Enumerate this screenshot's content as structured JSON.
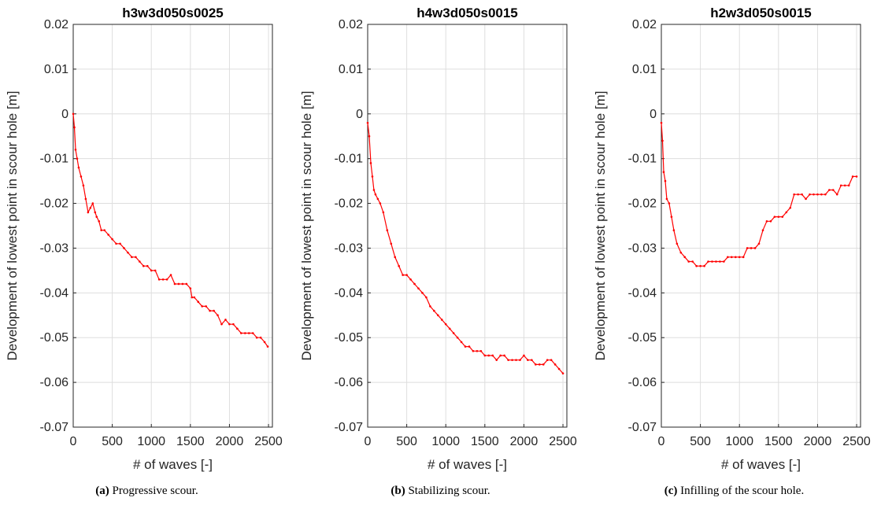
{
  "chart_data": [
    {
      "type": "line",
      "title": "h3w3d050s0025",
      "xlabel": "# of waves [-]",
      "ylabel": "Development of lowest point in scour hole [m]",
      "xlim": [
        0,
        2550
      ],
      "ylim": [
        -0.07,
        0.02
      ],
      "xticks": [
        0,
        500,
        1000,
        1500,
        2000,
        2500
      ],
      "xtick_labels": [
        "0",
        "500",
        "1000",
        "1500",
        "2000",
        "2500"
      ],
      "yticks": [
        0.02,
        0.01,
        0,
        -0.01,
        -0.02,
        -0.03,
        -0.04,
        -0.05,
        -0.06,
        -0.07
      ],
      "ytick_labels": [
        "0.02",
        "0.01",
        "0",
        "-0.01",
        "-0.02",
        "-0.03",
        "-0.04",
        "-0.05",
        "-0.06",
        "-0.07"
      ],
      "grid": true,
      "series": [
        {
          "color": "#ff0000",
          "x": [
            0,
            15,
            30,
            50,
            70,
            100,
            130,
            160,
            190,
            220,
            250,
            280,
            300,
            330,
            360,
            400,
            450,
            500,
            550,
            600,
            650,
            700,
            750,
            800,
            850,
            900,
            950,
            1000,
            1050,
            1100,
            1150,
            1200,
            1250,
            1300,
            1350,
            1400,
            1450,
            1500,
            1520,
            1550,
            1600,
            1650,
            1700,
            1750,
            1800,
            1850,
            1900,
            1950,
            2000,
            2050,
            2100,
            2150,
            2200,
            2250,
            2300,
            2350,
            2400,
            2450,
            2490
          ],
          "y": [
            0,
            -0.003,
            -0.008,
            -0.01,
            -0.012,
            -0.014,
            -0.016,
            -0.019,
            -0.022,
            -0.021,
            -0.02,
            -0.022,
            -0.023,
            -0.024,
            -0.026,
            -0.026,
            -0.027,
            -0.028,
            -0.029,
            -0.029,
            -0.03,
            -0.031,
            -0.032,
            -0.032,
            -0.033,
            -0.034,
            -0.034,
            -0.035,
            -0.035,
            -0.037,
            -0.037,
            -0.037,
            -0.036,
            -0.038,
            -0.038,
            -0.038,
            -0.038,
            -0.039,
            -0.041,
            -0.041,
            -0.042,
            -0.043,
            -0.043,
            -0.044,
            -0.044,
            -0.045,
            -0.047,
            -0.046,
            -0.047,
            -0.047,
            -0.048,
            -0.049,
            -0.049,
            -0.049,
            -0.049,
            -0.05,
            -0.05,
            -0.051,
            -0.052
          ]
        }
      ]
    },
    {
      "type": "line",
      "title": "h4w3d050s0015",
      "xlabel": "# of waves [-]",
      "ylabel": "Development of lowest point in scour hole [m]",
      "xlim": [
        0,
        2550
      ],
      "ylim": [
        -0.07,
        0.02
      ],
      "xticks": [
        0,
        500,
        1000,
        1500,
        2000,
        2500
      ],
      "xtick_labels": [
        "0",
        "500",
        "1000",
        "1500",
        "2000",
        "2500"
      ],
      "yticks": [
        0.02,
        0.01,
        0,
        -0.01,
        -0.02,
        -0.03,
        -0.04,
        -0.05,
        -0.06,
        -0.07
      ],
      "ytick_labels": [
        "0.02",
        "0.01",
        "0",
        "-0.01",
        "-0.02",
        "-0.03",
        "-0.04",
        "-0.05",
        "-0.06",
        "-0.07"
      ],
      "grid": true,
      "series": [
        {
          "color": "#ff0000",
          "x": [
            0,
            20,
            40,
            60,
            80,
            100,
            130,
            160,
            200,
            250,
            300,
            350,
            400,
            450,
            500,
            550,
            600,
            650,
            700,
            750,
            800,
            850,
            900,
            950,
            1000,
            1050,
            1100,
            1150,
            1200,
            1250,
            1300,
            1350,
            1400,
            1450,
            1500,
            1550,
            1600,
            1650,
            1700,
            1750,
            1800,
            1850,
            1900,
            1950,
            2000,
            2050,
            2100,
            2150,
            2200,
            2250,
            2300,
            2350,
            2400,
            2450,
            2500
          ],
          "y": [
            -0.002,
            -0.005,
            -0.011,
            -0.014,
            -0.017,
            -0.018,
            -0.019,
            -0.02,
            -0.022,
            -0.026,
            -0.029,
            -0.032,
            -0.034,
            -0.036,
            -0.036,
            -0.037,
            -0.038,
            -0.039,
            -0.04,
            -0.041,
            -0.043,
            -0.044,
            -0.045,
            -0.046,
            -0.047,
            -0.048,
            -0.049,
            -0.05,
            -0.051,
            -0.052,
            -0.052,
            -0.053,
            -0.053,
            -0.053,
            -0.054,
            -0.054,
            -0.054,
            -0.055,
            -0.054,
            -0.054,
            -0.055,
            -0.055,
            -0.055,
            -0.055,
            -0.054,
            -0.055,
            -0.055,
            -0.056,
            -0.056,
            -0.056,
            -0.055,
            -0.055,
            -0.056,
            -0.057,
            -0.058
          ]
        }
      ]
    },
    {
      "type": "line",
      "title": "h2w3d050s0015",
      "xlabel": "# of waves [-]",
      "ylabel": "Development of lowest point in scour hole [m]",
      "xlim": [
        0,
        2550
      ],
      "ylim": [
        -0.07,
        0.02
      ],
      "xticks": [
        0,
        500,
        1000,
        1500,
        2000,
        2500
      ],
      "xtick_labels": [
        "0",
        "500",
        "1000",
        "1500",
        "2000",
        "2500"
      ],
      "yticks": [
        0.02,
        0.01,
        0,
        -0.01,
        -0.02,
        -0.03,
        -0.04,
        -0.05,
        -0.06,
        -0.07
      ],
      "ytick_labels": [
        "0.02",
        "0.01",
        "0",
        "-0.01",
        "-0.02",
        "-0.03",
        "-0.04",
        "-0.05",
        "-0.06",
        "-0.07"
      ],
      "grid": true,
      "series": [
        {
          "color": "#ff0000",
          "x": [
            0,
            15,
            30,
            50,
            70,
            100,
            130,
            160,
            200,
            250,
            300,
            350,
            400,
            450,
            500,
            550,
            600,
            650,
            700,
            750,
            800,
            850,
            900,
            950,
            1000,
            1050,
            1100,
            1150,
            1200,
            1250,
            1300,
            1350,
            1400,
            1450,
            1500,
            1550,
            1600,
            1650,
            1700,
            1750,
            1800,
            1850,
            1900,
            1950,
            2000,
            2050,
            2100,
            2150,
            2200,
            2250,
            2300,
            2350,
            2400,
            2450,
            2500
          ],
          "y": [
            -0.002,
            -0.006,
            -0.013,
            -0.015,
            -0.019,
            -0.02,
            -0.023,
            -0.026,
            -0.029,
            -0.031,
            -0.032,
            -0.033,
            -0.033,
            -0.034,
            -0.034,
            -0.034,
            -0.033,
            -0.033,
            -0.033,
            -0.033,
            -0.033,
            -0.032,
            -0.032,
            -0.032,
            -0.032,
            -0.032,
            -0.03,
            -0.03,
            -0.03,
            -0.029,
            -0.026,
            -0.024,
            -0.024,
            -0.023,
            -0.023,
            -0.023,
            -0.022,
            -0.021,
            -0.018,
            -0.018,
            -0.018,
            -0.019,
            -0.018,
            -0.018,
            -0.018,
            -0.018,
            -0.018,
            -0.017,
            -0.017,
            -0.018,
            -0.016,
            -0.016,
            -0.016,
            -0.014,
            -0.014
          ]
        }
      ]
    }
  ],
  "captions": [
    {
      "tag": "(a)",
      "text": " Progressive scour."
    },
    {
      "tag": "(b)",
      "text": " Stabilizing scour."
    },
    {
      "tag": "(c)",
      "text": " Infilling of the scour hole."
    }
  ]
}
